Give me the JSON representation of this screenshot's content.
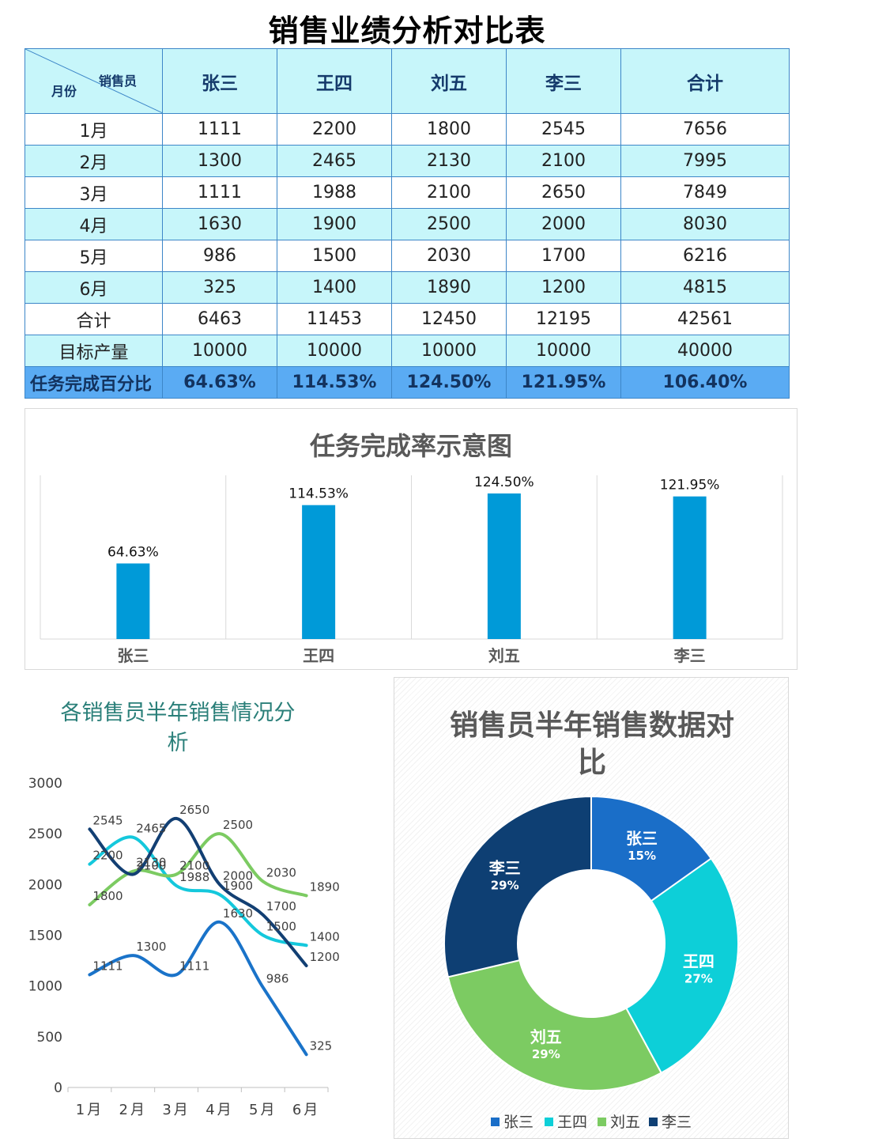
{
  "title": "销售业绩分析对比表",
  "table": {
    "corner_top": "销售员",
    "corner_bottom": "月份",
    "columns": [
      "张三",
      "王四",
      "刘五",
      "李三",
      "合计"
    ],
    "rows": [
      {
        "label": "1月",
        "values": [
          "1111",
          "2200",
          "1800",
          "2545",
          "7656"
        ]
      },
      {
        "label": "2月",
        "values": [
          "1300",
          "2465",
          "2130",
          "2100",
          "7995"
        ]
      },
      {
        "label": "3月",
        "values": [
          "1111",
          "1988",
          "2100",
          "2650",
          "7849"
        ]
      },
      {
        "label": "4月",
        "values": [
          "1630",
          "1900",
          "2500",
          "2000",
          "8030"
        ]
      },
      {
        "label": "5月",
        "values": [
          "986",
          "1500",
          "2030",
          "1700",
          "6216"
        ]
      },
      {
        "label": "6月",
        "values": [
          "325",
          "1400",
          "1890",
          "1200",
          "4815"
        ]
      },
      {
        "label": "合计",
        "values": [
          "6463",
          "11453",
          "12450",
          "12195",
          "42561"
        ]
      },
      {
        "label": "目标产量",
        "values": [
          "10000",
          "10000",
          "10000",
          "10000",
          "40000"
        ]
      }
    ],
    "pct_row": {
      "label": "任务完成百分比",
      "values": [
        "64.63%",
        "114.53%",
        "124.50%",
        "121.95%",
        "106.40%"
      ]
    }
  },
  "chart_data": [
    {
      "type": "bar",
      "title": "任务完成率示意图",
      "categories": [
        "张三",
        "王四",
        "刘五",
        "李三"
      ],
      "values": [
        64.63,
        114.53,
        124.5,
        121.95
      ],
      "data_labels": [
        "64.63%",
        "114.53%",
        "124.50%",
        "121.95%"
      ],
      "color": "#009ad8",
      "ylim": [
        0,
        140
      ],
      "grid": "vertical category separators"
    },
    {
      "type": "line",
      "title": "各销售员半年销售情况分析",
      "smooth": true,
      "categories": [
        "1月",
        "2月",
        "3月",
        "4月",
        "5月",
        "6月"
      ],
      "ylim": [
        0,
        3000
      ],
      "yticks": [
        0,
        500,
        1000,
        1500,
        2000,
        2500,
        3000
      ],
      "series": [
        {
          "values": [
            1111,
            1300,
            1111,
            1630,
            986,
            325
          ],
          "color": "#1a73c9"
        },
        {
          "values": [
            2200,
            2465,
            1988,
            1900,
            1500,
            1400
          ],
          "color": "#14c8dc"
        },
        {
          "values": [
            1800,
            2130,
            2100,
            2500,
            2030,
            1890
          ],
          "color": "#7ccb62"
        },
        {
          "values": [
            2545,
            2100,
            2650,
            2000,
            1700,
            1200
          ],
          "color": "#123f73"
        }
      ]
    },
    {
      "type": "pie",
      "variant": "donut",
      "title": "销售员半年销售数据对比",
      "labels": [
        "张三",
        "王四",
        "刘五",
        "李三"
      ],
      "values": [
        6463,
        11453,
        12450,
        12195
      ],
      "percent_labels": [
        "15%",
        "27%",
        "29%",
        "29%"
      ],
      "colors": [
        "#1a6ec8",
        "#0dcfd8",
        "#7ccb62",
        "#0e3f73"
      ],
      "legend": "bottom"
    }
  ]
}
